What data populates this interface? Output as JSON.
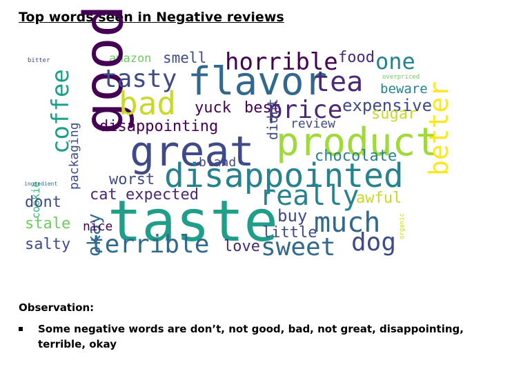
{
  "heading": "Top words seen in Negative reviews",
  "observation_label": "Observation:",
  "bullets": [
    "Some negative words are don’t, not good, bad, not great, disappointing, terrible, okay"
  ],
  "colors": {
    "dark_purple": "#440154",
    "indigo": "#3e4a89",
    "teal": "#26828e",
    "green": "#35b779",
    "yellow": "#c8d928"
  },
  "wordcloud": [
    {
      "text": "bitter",
      "color": "#3e4a89"
    },
    {
      "text": "amazon",
      "color": "#6ccd5a"
    },
    {
      "text": "smell",
      "color": "#3e4a89"
    },
    {
      "text": "horrible",
      "color": "#440154"
    },
    {
      "text": "food",
      "color": "#482878"
    },
    {
      "text": "one",
      "color": "#26828e"
    },
    {
      "text": "good",
      "color": "#440154"
    },
    {
      "text": "tasty",
      "color": "#3e4a89"
    },
    {
      "text": "flavor",
      "color": "#31688e"
    },
    {
      "text": "tea",
      "color": "#482878"
    },
    {
      "text": "overpriced",
      "color": "#6ccd5a"
    },
    {
      "text": "beware",
      "color": "#26828e"
    },
    {
      "text": "coffee",
      "color": "#1f9e89"
    },
    {
      "text": "bad",
      "color": "#c8d928"
    },
    {
      "text": "yuck",
      "color": "#440154"
    },
    {
      "text": "best",
      "color": "#440154"
    },
    {
      "text": "price",
      "color": "#482878"
    },
    {
      "text": "expensive",
      "color": "#3e4a89"
    },
    {
      "text": "sugar",
      "color": "#c8d928"
    },
    {
      "text": "packaging",
      "color": "#3e4a89"
    },
    {
      "text": "disappointing",
      "color": "#440154"
    },
    {
      "text": "review",
      "color": "#3e4a89"
    },
    {
      "text": "great",
      "color": "#3e4a89"
    },
    {
      "text": "product",
      "color": "#a0da39"
    },
    {
      "text": "didnt",
      "color": "#3e4a89"
    },
    {
      "text": "chocolate",
      "color": "#26828e"
    },
    {
      "text": "cookie",
      "color": "#35b779"
    },
    {
      "text": "bland",
      "color": "#3e4a89"
    },
    {
      "text": "ingredient",
      "color": "#31688e"
    },
    {
      "text": "worst",
      "color": "#3e4a89"
    },
    {
      "text": "disappointed",
      "color": "#26828e"
    },
    {
      "text": "better",
      "color": "#fde725"
    },
    {
      "text": "dont",
      "color": "#3e4a89"
    },
    {
      "text": "cat",
      "color": "#482878"
    },
    {
      "text": "expected",
      "color": "#482878"
    },
    {
      "text": "really",
      "color": "#26828e"
    },
    {
      "text": "awful",
      "color": "#c8d928"
    },
    {
      "text": "okay",
      "color": "#31688e"
    },
    {
      "text": "taste",
      "color": "#1f9e89"
    },
    {
      "text": "buy",
      "color": "#3e4a89"
    },
    {
      "text": "stale",
      "color": "#6ccd5a"
    },
    {
      "text": "nice",
      "color": "#440154"
    },
    {
      "text": "much",
      "color": "#31688e"
    },
    {
      "text": "organic",
      "color": "#c8d928"
    },
    {
      "text": "little",
      "color": "#3e4a89"
    },
    {
      "text": "salty",
      "color": "#3e4a89"
    },
    {
      "text": "terrible",
      "color": "#31688e"
    },
    {
      "text": "love",
      "color": "#482878"
    },
    {
      "text": "sweet",
      "color": "#31688e"
    },
    {
      "text": "dog",
      "color": "#3e4a89"
    }
  ]
}
